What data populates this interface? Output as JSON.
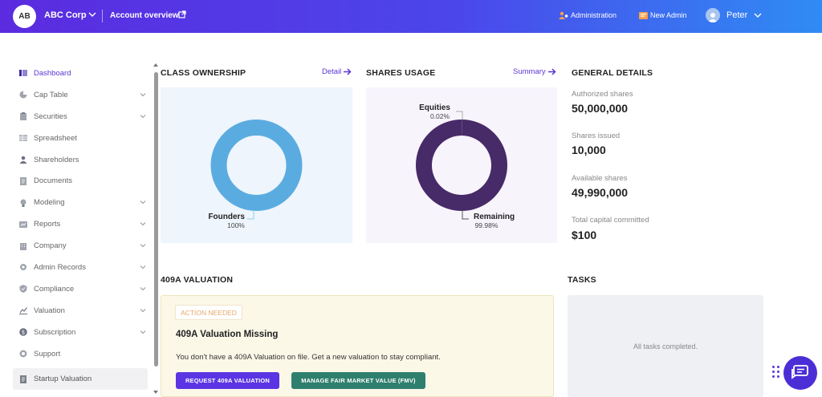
{
  "header": {
    "logo_initials": "AB",
    "company_name": "ABC Corp",
    "account_overview": "Account overview",
    "administration": "Administration",
    "new_admin": "New Admin",
    "user_name": "Peter"
  },
  "sidebar": {
    "items": [
      {
        "label": "Dashboard",
        "icon": "dashboard-icon",
        "active": true
      },
      {
        "label": "Cap Table",
        "icon": "pie-icon",
        "expandable": true
      },
      {
        "label": "Securities",
        "icon": "clipboard-icon",
        "expandable": true
      },
      {
        "label": "Spreadsheet",
        "icon": "spreadsheet-icon"
      },
      {
        "label": "Shareholders",
        "icon": "person-icon"
      },
      {
        "label": "Documents",
        "icon": "document-icon"
      },
      {
        "label": "Modeling",
        "icon": "bulb-icon",
        "expandable": true
      },
      {
        "label": "Reports",
        "icon": "reports-icon",
        "expandable": true
      },
      {
        "label": "Company",
        "icon": "company-icon",
        "expandable": true
      },
      {
        "label": "Admin Records",
        "icon": "gear-icon",
        "expandable": true
      },
      {
        "label": "Compliance",
        "icon": "shield-icon",
        "expandable": true
      },
      {
        "label": "Valuation",
        "icon": "chart-icon",
        "expandable": true
      },
      {
        "label": "Subscription",
        "icon": "dollar-icon",
        "expandable": true
      },
      {
        "label": "Support",
        "icon": "support-icon"
      }
    ],
    "startup_valuation": "Startup Valuation"
  },
  "class_ownership": {
    "title": "CLASS OWNERSHIP",
    "link": "Detail",
    "slice_label": "Founders",
    "slice_pct": "100%",
    "color": "#5aace0"
  },
  "shares_usage": {
    "title": "SHARES USAGE",
    "link": "Summary",
    "equities_label": "Equities",
    "equities_pct": "0.02%",
    "remaining_label": "Remaining",
    "remaining_pct": "99.98%",
    "color": "#472a68"
  },
  "general_details": {
    "title": "GENERAL DETAILS",
    "items": [
      {
        "label": "Authorized shares",
        "value": "50,000,000"
      },
      {
        "label": "Shares issued",
        "value": "10,000"
      },
      {
        "label": "Available shares",
        "value": "49,990,000"
      },
      {
        "label": "Total capital committed",
        "value": "$100"
      }
    ]
  },
  "valuation": {
    "title": "409A VALUATION",
    "badge": "ACTION NEEDED",
    "card_title": "409A Valuation Missing",
    "message": "You don't have a 409A Valuation on file. Get a new valuation to stay compliant.",
    "btn_request": "REQUEST 409A VALUATION",
    "btn_manage": "MANAGE FAIR MARKET VALUE (FMV)"
  },
  "tasks": {
    "title": "TASKS",
    "empty_text": "All tasks completed."
  },
  "chart_data": [
    {
      "type": "pie",
      "categories": [
        "Founders"
      ],
      "values": [
        100
      ],
      "title": "CLASS OWNERSHIP"
    },
    {
      "type": "pie",
      "categories": [
        "Equities",
        "Remaining"
      ],
      "values": [
        0.02,
        99.98
      ],
      "title": "SHARES USAGE"
    }
  ]
}
